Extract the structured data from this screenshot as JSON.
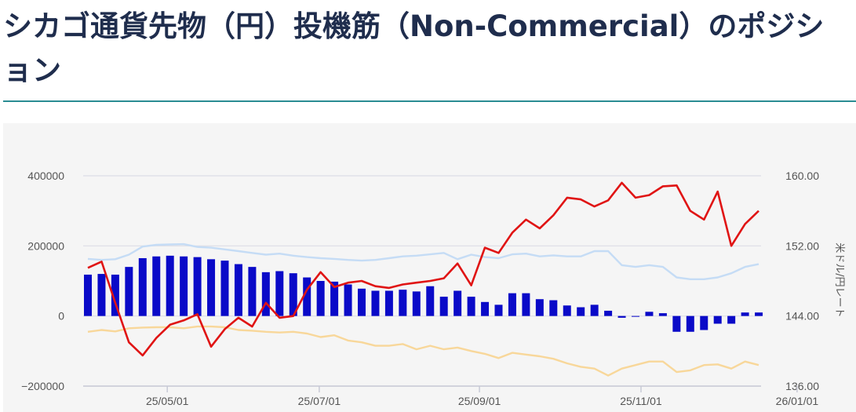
{
  "page": {
    "title": "シカゴ通貨先物（円）投機筋（Non-Commercial）のポジション"
  },
  "colors": {
    "title": "#1f2d4d",
    "rule": "#2a8c93",
    "net_bars": "#0a0ac8",
    "long_line": "#c5dcf5",
    "short_line": "#f8d79a",
    "rate_line": "#e01414",
    "grid": "#dcdde6",
    "panel_bg": "#f5f5f5"
  },
  "chart_data": {
    "type": "bar",
    "title": "",
    "xlabel": "",
    "ylabel": "",
    "y2label": "米ドル/円レート",
    "ylim": [
      -200000,
      400000
    ],
    "y2lim": [
      136,
      160
    ],
    "yticks": [
      "400000",
      "200000",
      "0",
      "−200000"
    ],
    "y2ticks": [
      "160.00",
      "152.00",
      "144.00",
      "136.00"
    ],
    "xticks": [
      "25/05/01",
      "25/07/01",
      "25/09/01",
      "25/11/01",
      "26/01/01"
    ],
    "xtick_index": [
      5.8,
      16.9,
      28.6,
      40.4,
      51.8
    ],
    "grid": true,
    "legend": "none",
    "series": [
      {
        "kind": "bar",
        "axis": "left",
        "color": "#0a0ac8",
        "values": [
          118000,
          120000,
          118000,
          140000,
          165000,
          170000,
          172000,
          170000,
          168000,
          162000,
          158000,
          148000,
          140000,
          125000,
          128000,
          122000,
          110000,
          100000,
          98000,
          90000,
          78000,
          72000,
          72000,
          75000,
          70000,
          85000,
          55000,
          72000,
          55000,
          40000,
          32000,
          65000,
          65000,
          48000,
          45000,
          30000,
          25000,
          32000,
          15000,
          -5000,
          -2000,
          12000,
          8000,
          -45000,
          -45000,
          -40000,
          -22000,
          -22000,
          10000,
          10000
        ]
      },
      {
        "kind": "line",
        "axis": "left",
        "color": "#c5dcf5",
        "values": [
          163000,
          160000,
          162000,
          175000,
          198000,
          203000,
          204000,
          205000,
          197000,
          195000,
          190000,
          185000,
          180000,
          175000,
          178000,
          172000,
          168000,
          165000,
          163000,
          160000,
          158000,
          160000,
          165000,
          170000,
          172000,
          176000,
          180000,
          162000,
          175000,
          168000,
          165000,
          176000,
          178000,
          170000,
          173000,
          170000,
          170000,
          185000,
          185000,
          145000,
          140000,
          145000,
          140000,
          110000,
          105000,
          105000,
          110000,
          122000,
          140000,
          148000
        ]
      },
      {
        "kind": "line",
        "axis": "left",
        "color": "#f8d79a",
        "values": [
          -45000,
          -40000,
          -44000,
          -35000,
          -33000,
          -32000,
          -32000,
          -35000,
          -30000,
          -30000,
          -32000,
          -40000,
          -42000,
          -45000,
          -47000,
          -45000,
          -50000,
          -60000,
          -55000,
          -70000,
          -75000,
          -85000,
          -85000,
          -80000,
          -95000,
          -85000,
          -95000,
          -90000,
          -100000,
          -108000,
          -120000,
          -105000,
          -110000,
          -115000,
          -122000,
          -135000,
          -145000,
          -150000,
          -170000,
          -150000,
          -140000,
          -130000,
          -130000,
          -160000,
          -155000,
          -140000,
          -138000,
          -150000,
          -130000,
          -140000
        ]
      },
      {
        "kind": "line",
        "axis": "right",
        "name": "米ドル/円レート",
        "color": "#e01414",
        "values": [
          149.5,
          150.2,
          145.5,
          141.0,
          139.5,
          141.5,
          143.0,
          143.5,
          144.2,
          140.5,
          142.5,
          143.8,
          142.8,
          145.5,
          143.8,
          144.0,
          147.0,
          149.0,
          147.3,
          147.8,
          148.0,
          147.4,
          147.2,
          147.6,
          147.8,
          148.0,
          148.3,
          150.0,
          147.5,
          151.8,
          151.2,
          153.5,
          155.0,
          154.0,
          155.5,
          157.5,
          157.3,
          156.5,
          157.2,
          159.2,
          157.5,
          157.8,
          158.8,
          158.9,
          156.0,
          155.0,
          158.2,
          152.0,
          154.5,
          156.0
        ]
      }
    ]
  }
}
